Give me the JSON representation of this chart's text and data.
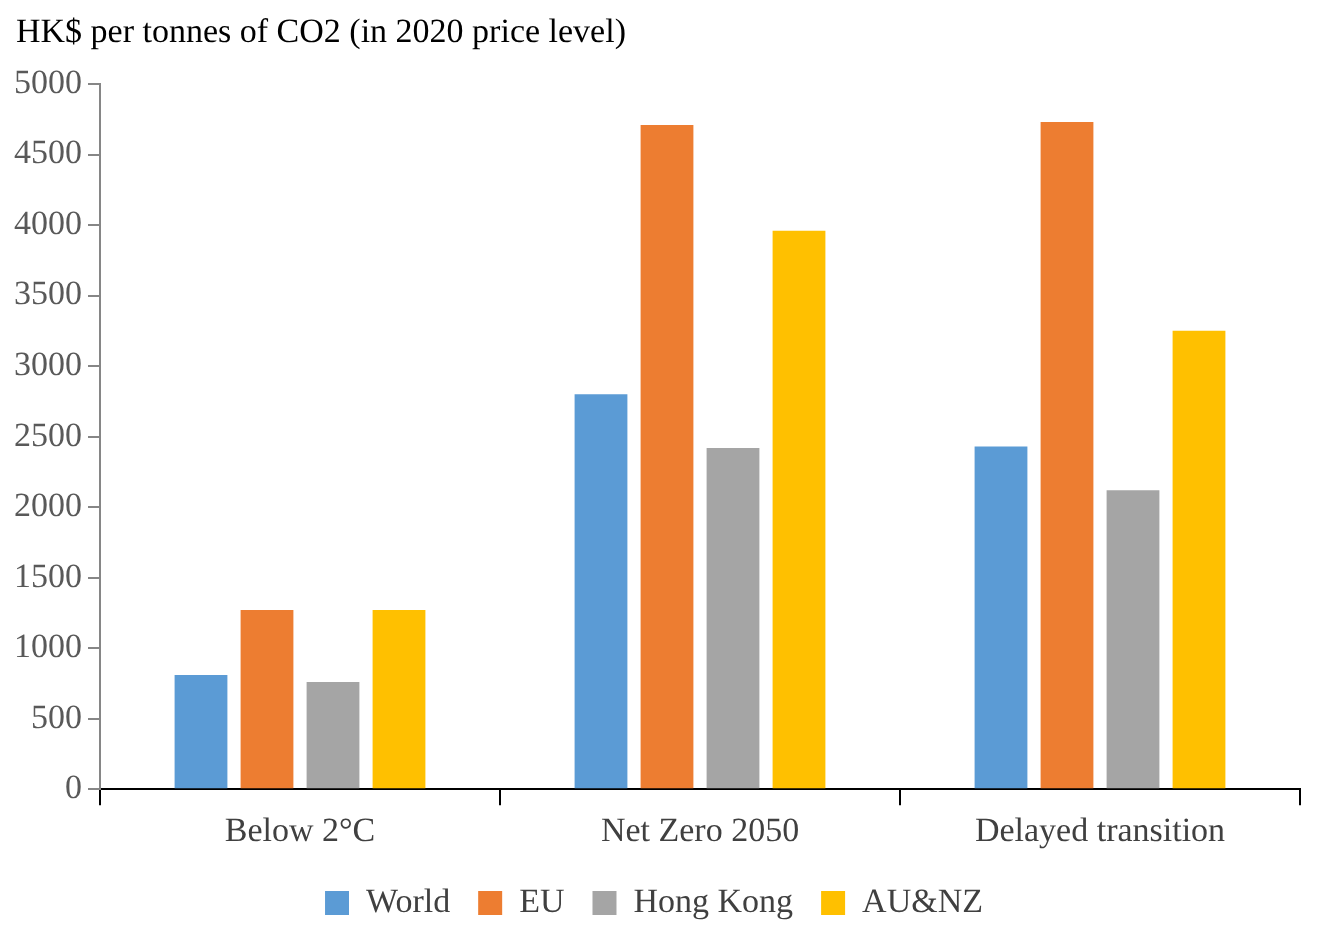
{
  "chart_data": {
    "type": "bar",
    "title": "HK$ per tonnes of CO2 (in 2020 price level)",
    "categories": [
      "Below 2°C",
      "Net Zero 2050",
      "Delayed transition"
    ],
    "series": [
      {
        "name": "World",
        "color": "#5b9bd5",
        "values": [
          810,
          2800,
          2430
        ]
      },
      {
        "name": "EU",
        "color": "#ed7d31",
        "values": [
          1270,
          4710,
          4730
        ]
      },
      {
        "name": "Hong Kong",
        "color": "#a5a5a5",
        "values": [
          760,
          2420,
          2120
        ]
      },
      {
        "name": "AU&NZ",
        "color": "#ffc000",
        "values": [
          1270,
          3960,
          3250
        ]
      }
    ],
    "ylim": [
      0,
      5000
    ],
    "yticks": [
      0,
      500,
      1000,
      1500,
      2000,
      2500,
      3000,
      3500,
      4000,
      4500,
      5000
    ],
    "grid": false,
    "legend": "bottom"
  }
}
